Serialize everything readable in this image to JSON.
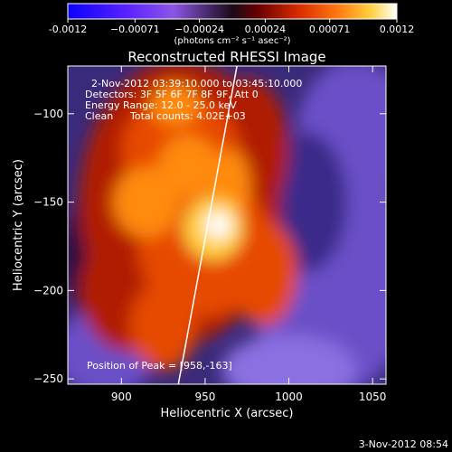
{
  "chart_data": {
    "type": "heatmap",
    "title": "Reconstructed RHESSI Image",
    "xlabel": "Heliocentric X (arcsec)",
    "ylabel": "Heliocentric Y (arcsec)",
    "xlim": [
      868,
      1058
    ],
    "ylim": [
      -253,
      -73
    ],
    "xticks": [
      900,
      950,
      1000,
      1050
    ],
    "yticks": [
      -100,
      -150,
      -200,
      -250
    ],
    "colorbar": {
      "range": [
        -0.0012,
        0.0012
      ],
      "ticks": [
        -0.0012,
        -0.00071,
        -0.00024,
        0.00024,
        0.00071,
        0.0012
      ],
      "tick_labels": [
        "-0.0012",
        "−0.00071",
        "−0.00024",
        "0.00024",
        "0.00071",
        "0.0012"
      ],
      "label": "(photons cm⁻² s⁻¹ asec⁻²)"
    },
    "info": {
      "time": "2-Nov-2012 03:39:10.000 to 03:45:10.000",
      "detectors": "Detectors: 3F 5F 6F 7F 8F 9F, Att 0",
      "energy": "Energy Range: 12.0 - 25.0 keV",
      "method": "Clean",
      "total_counts": "Total counts: 4.02E+03"
    },
    "peak_text": "Position of Peak = [958,-163]",
    "peak": [
      958,
      -163
    ],
    "limb_line": [
      [
        934,
        -253
      ],
      [
        969,
        -73
      ]
    ],
    "colors": {
      "negative": [
        "#1a0f3c",
        "#3a2a8a",
        "#6a4fc8",
        "#8a6fe0"
      ],
      "positive": [
        "#5a0000",
        "#b01a00",
        "#e64a00",
        "#ff8a10",
        "#ffd040",
        "#ffffff"
      ]
    }
  },
  "timestamp": "3-Nov-2012 08:54"
}
